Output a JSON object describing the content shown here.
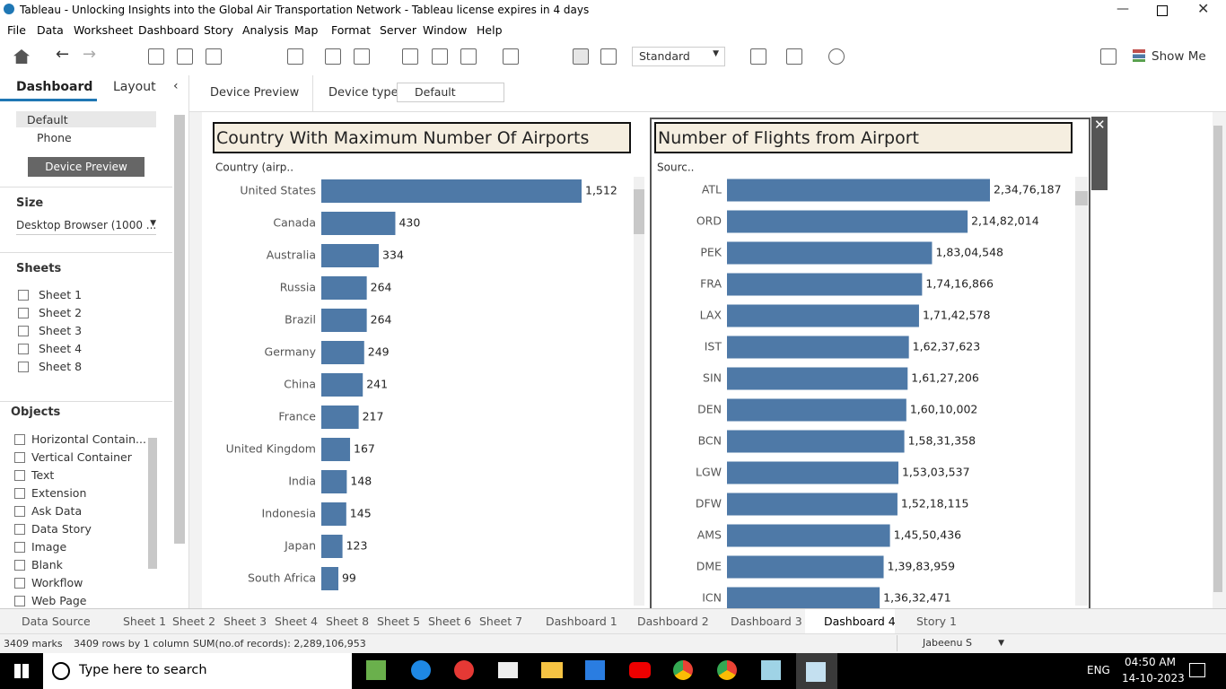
{
  "window": {
    "title": "Tableau - Unlocking Insights into the Global Air Transportation Network - Tableau license expires in 4 days"
  },
  "menu": [
    "File",
    "Data",
    "Worksheet",
    "Dashboard",
    "Story",
    "Analysis",
    "Map",
    "Format",
    "Server",
    "Window",
    "Help"
  ],
  "toolbar": {
    "fit": "Standard",
    "show_me": "Show Me"
  },
  "side_panel": {
    "tabs": [
      "Dashboard",
      "Layout"
    ],
    "devices": [
      "Default",
      "Phone"
    ],
    "device_preview": "Device Preview",
    "size_heading": "Size",
    "size_value": "Desktop Browser (1000 ...",
    "sheets_heading": "Sheets",
    "sheets": [
      "Sheet 1",
      "Sheet 2",
      "Sheet 3",
      "Sheet 4",
      "Sheet 8"
    ],
    "objects_heading": "Objects",
    "objects": [
      "Horizontal Contain...",
      "Vertical Container",
      "Text",
      "Extension",
      "Ask Data",
      "Data Story",
      "Image",
      "Blank",
      "Workflow",
      "Web Page"
    ]
  },
  "device_bar": {
    "device_preview": "Device Preview",
    "device_type_label": "Device type",
    "device_type_value": "Default"
  },
  "chart_data": [
    {
      "type": "bar",
      "title": "Country With Maximum Number Of Airports",
      "y_label": "Country (airp..",
      "categories": [
        "United States",
        "Canada",
        "Australia",
        "Russia",
        "Brazil",
        "Germany",
        "China",
        "France",
        "United Kingdom",
        "India",
        "Indonesia",
        "Japan",
        "South Africa"
      ],
      "values": [
        1512,
        430,
        334,
        264,
        264,
        249,
        241,
        217,
        167,
        148,
        145,
        123,
        99
      ],
      "value_labels": [
        "1,512",
        "430",
        "334",
        "264",
        "264",
        "249",
        "241",
        "217",
        "167",
        "148",
        "145",
        "123",
        "99"
      ],
      "color": "#4e79a7"
    },
    {
      "type": "bar",
      "title": "Number of Flights from Airport",
      "y_label": "Sourc..",
      "categories": [
        "ATL",
        "ORD",
        "PEK",
        "FRA",
        "LAX",
        "IST",
        "SIN",
        "DEN",
        "BCN",
        "LGW",
        "DFW",
        "AMS",
        "DME",
        "ICN"
      ],
      "values": [
        23476187,
        21482014,
        18304548,
        17416866,
        17142578,
        16237623,
        16127206,
        16010002,
        15831358,
        15303537,
        15218115,
        14550436,
        13983959,
        13632471
      ],
      "value_labels": [
        "2,34,76,187",
        "2,14,82,014",
        "1,83,04,548",
        "1,74,16,866",
        "1,71,42,578",
        "1,62,37,623",
        "1,61,27,206",
        "1,60,10,002",
        "1,58,31,358",
        "1,53,03,537",
        "1,52,18,115",
        "1,45,50,436",
        "1,39,83,959",
        "1,36,32,471"
      ],
      "color": "#4e79a7"
    }
  ],
  "sheet_tabs": [
    "Data Source",
    "Sheet 1",
    "Sheet 2",
    "Sheet 3",
    "Sheet 4",
    "Sheet 8",
    "Sheet 5",
    "Sheet 6",
    "Sheet 7",
    "Dashboard 1",
    "Dashboard 2",
    "Dashboard 3",
    "Dashboard 4",
    "Story 1"
  ],
  "status_bar": {
    "marks": "3409 marks",
    "rows": "3409 rows by 1 column",
    "sum": "SUM(no.of records): 2,289,106,953",
    "user": "Jabeenu S"
  },
  "taskbar": {
    "search": "Type here to search",
    "language": "ENG",
    "time": "04:50 AM",
    "date": "14-10-2023"
  }
}
